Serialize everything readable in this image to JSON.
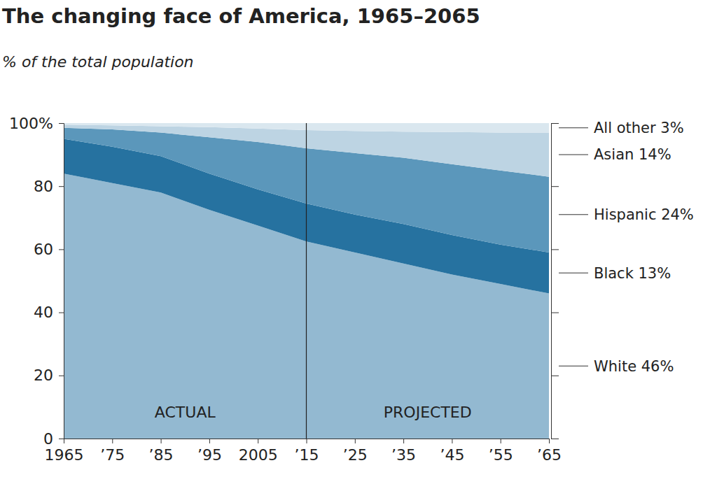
{
  "chart_data": {
    "type": "area",
    "title": "The changing face of America, 1965–2065",
    "subtitle": "% of the total population",
    "stacked": true,
    "grid": false,
    "x": [
      1965,
      1975,
      1985,
      1995,
      2005,
      2015,
      2025,
      2035,
      2045,
      2055,
      2065
    ],
    "series": [
      {
        "name": "White",
        "color": "#93b9d1",
        "values": [
          84,
          81,
          78,
          72.5,
          67.5,
          62.5,
          59,
          55.5,
          52,
          49,
          46
        ]
      },
      {
        "name": "Black",
        "color": "#2672a0",
        "values": [
          11,
          11.5,
          11.5,
          11.5,
          11.5,
          12,
          12,
          12.5,
          12.5,
          12.5,
          13
        ]
      },
      {
        "name": "Hispanic",
        "color": "#5b97bb",
        "values": [
          3.5,
          5.5,
          7.5,
          11.5,
          15,
          17.5,
          19.5,
          21,
          22.5,
          23.5,
          24
        ]
      },
      {
        "name": "Asian",
        "color": "#bdd4e3",
        "values": [
          1,
          1.3,
          2,
          3.2,
          4.3,
          5.8,
          7,
          8.3,
          10.2,
          12,
          14
        ]
      },
      {
        "name": "All other",
        "color": "#dae7ef",
        "values": [
          0.5,
          0.7,
          1,
          1.3,
          1.7,
          2.2,
          2.5,
          2.7,
          2.8,
          3,
          3
        ]
      }
    ],
    "annotations": [
      "White 46%",
      "Black 13%",
      "Hispanic 24%",
      "Asian 14%",
      "All other 3%"
    ],
    "xlim": [
      1965,
      2065
    ],
    "xticks": [
      1965,
      {
        "value": 1975,
        "label": "’75"
      },
      {
        "value": 1985,
        "label": "’85"
      },
      {
        "value": 1995,
        "label": "’95"
      },
      2005,
      {
        "value": 2015,
        "label": "’15"
      },
      {
        "value": 2025,
        "label": "’25"
      },
      {
        "value": 2035,
        "label": "’35"
      },
      {
        "value": 2045,
        "label": "’45"
      },
      {
        "value": 2055,
        "label": "’55"
      },
      {
        "value": 2065,
        "label": "’65"
      }
    ],
    "ylim": [
      0,
      100
    ],
    "yticks": [
      0,
      20,
      40,
      60,
      80,
      {
        "value": 100,
        "label": "100%"
      }
    ],
    "projection_start": 2015,
    "section_labels": [
      "ACTUAL",
      "PROJECTED"
    ]
  }
}
